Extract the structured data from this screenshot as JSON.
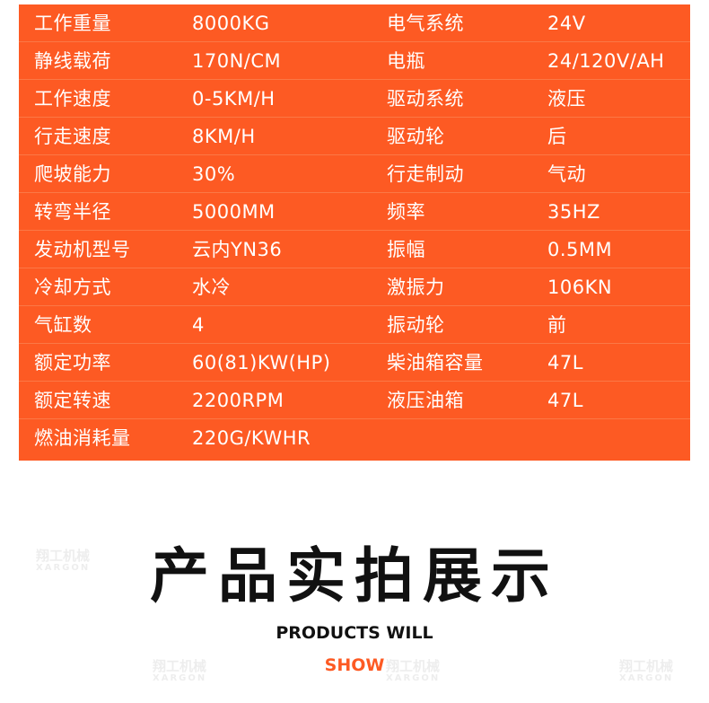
{
  "specs": [
    [
      "工作重量",
      "8000KG",
      "电气系统",
      "24V"
    ],
    [
      "静线载荷",
      "170N/CM",
      "电瓶",
      "24/120V/AH"
    ],
    [
      "工作速度",
      "0-5KM/H",
      "驱动系统",
      "液压"
    ],
    [
      "行走速度",
      "8KM/H",
      "驱动轮",
      "后"
    ],
    [
      "爬坡能力",
      "30%",
      "行走制动",
      "气动"
    ],
    [
      "转弯半径",
      "5000MM",
      "频率",
      "35HZ"
    ],
    [
      "发动机型号",
      "云内YN36",
      "振幅",
      "0.5MM"
    ],
    [
      "冷却方式",
      "水冷",
      "激振力",
      "106KN"
    ],
    [
      "气缸数",
      "4",
      "振动轮",
      "前"
    ],
    [
      "额定功率",
      "60(81)KW(HP)",
      "柴油箱容量",
      "47L"
    ],
    [
      "额定转速",
      "2200RPM",
      "液压油箱",
      "47L"
    ],
    [
      "燃油消耗量",
      "220G/KWHR",
      "",
      ""
    ]
  ],
  "section": {
    "title": "产品实拍展示",
    "subtitle_line1": "PRODUCTS WILL",
    "subtitle_line2": "SHOW"
  },
  "watermark": {
    "cn": "翔工机械",
    "en": "XARGON"
  },
  "colors": {
    "table_bg": "#fd5a23",
    "accent": "#fd5a23"
  }
}
